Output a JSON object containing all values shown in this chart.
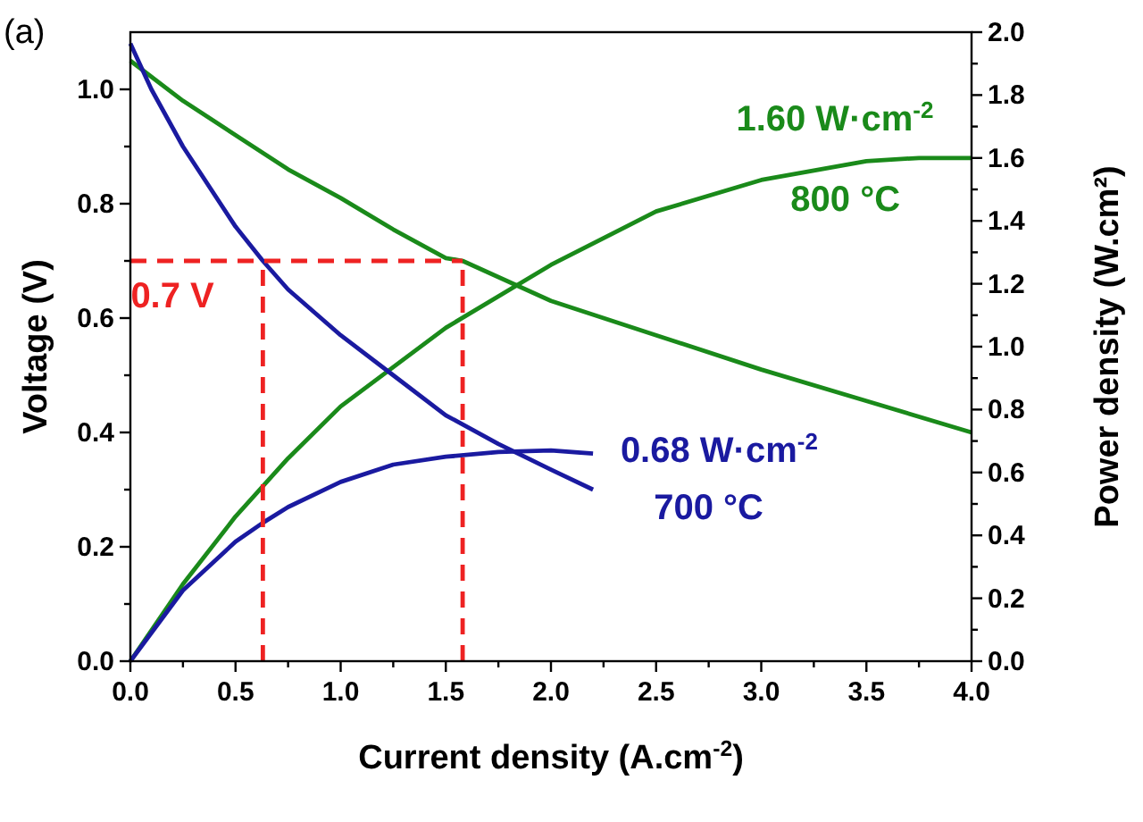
{
  "chart_data": {
    "type": "line",
    "title": "(a)",
    "xlabel": "Current density (A.cm$^{-2}$)",
    "ylabel": "Voltage (V)",
    "y2label": "Power density (W.cm²)",
    "xlim": [
      0,
      4
    ],
    "ylim": [
      0,
      1.1
    ],
    "y2lim": [
      0,
      2
    ],
    "xticks": [
      {
        "value": 0,
        "label": "0.0"
      },
      {
        "value": 0.25,
        "label": null
      },
      0.5,
      {
        "value": 0.75,
        "label": null
      },
      {
        "value": 1,
        "label": "1.0"
      },
      {
        "value": 1.25,
        "label": null
      },
      1.5,
      {
        "value": 1.75,
        "label": null
      },
      {
        "value": 2,
        "label": "2.0"
      },
      {
        "value": 2.25,
        "label": null
      },
      2.5,
      {
        "value": 2.75,
        "label": null
      },
      {
        "value": 3,
        "label": "3.0"
      },
      {
        "value": 3.25,
        "label": null
      },
      3.5,
      {
        "value": 3.75,
        "label": null
      },
      {
        "value": 4,
        "label": "4.0"
      }
    ],
    "yticks": [
      {
        "value": 0,
        "label": "0.0"
      },
      {
        "value": 0.1,
        "label": null
      },
      0.2,
      {
        "value": 0.3,
        "label": null
      },
      0.4,
      {
        "value": 0.5,
        "label": null
      },
      0.6,
      {
        "value": 0.7,
        "label": null
      },
      0.8,
      {
        "value": 0.9,
        "label": null
      },
      {
        "value": 1,
        "label": "1.0"
      }
    ],
    "y2ticks": [
      {
        "value": 0,
        "label": "0.0"
      },
      {
        "value": 0.1,
        "label": null
      },
      0.2,
      {
        "value": 0.3,
        "label": null
      },
      0.4,
      {
        "value": 0.5,
        "label": null
      },
      0.6,
      {
        "value": 0.7,
        "label": null
      },
      0.8,
      {
        "value": 0.9,
        "label": null
      },
      {
        "value": 1,
        "label": "1.0"
      },
      {
        "value": 1.1,
        "label": null
      },
      1.2,
      {
        "value": 1.3,
        "label": null
      },
      1.4,
      {
        "value": 1.5,
        "label": null
      },
      1.6,
      {
        "value": 1.7,
        "label": null
      },
      1.8,
      {
        "value": 1.9,
        "label": null
      },
      {
        "value": 2,
        "label": "2.0"
      }
    ],
    "grid": false,
    "marker": "none",
    "series": [
      {
        "color": "#1a8a1a",
        "x": [
          0,
          0.25,
          0.5,
          0.75,
          1.0,
          1.25,
          1.5,
          1.58,
          2.0,
          2.5,
          3.0,
          3.5,
          4.0
        ],
        "values": [
          1.05,
          0.98,
          0.92,
          0.86,
          0.81,
          0.755,
          0.705,
          0.7,
          0.63,
          0.57,
          0.51,
          0.455,
          0.4
        ]
      },
      {
        "color": "#1a8a1a",
        "axis": "y2",
        "x": [
          0,
          0.25,
          0.5,
          0.75,
          1.0,
          1.5,
          2.0,
          2.5,
          3.0,
          3.5,
          3.75,
          4.0
        ],
        "values": [
          0,
          0.245,
          0.46,
          0.645,
          0.81,
          1.06,
          1.26,
          1.43,
          1.53,
          1.59,
          1.6,
          1.6
        ]
      },
      {
        "color": "#1a1aa0",
        "x": [
          0,
          0.1,
          0.25,
          0.5,
          0.63,
          0.75,
          1.0,
          1.25,
          1.5,
          1.75,
          2.0,
          2.2
        ],
        "values": [
          1.08,
          1.0,
          0.9,
          0.76,
          0.7,
          0.65,
          0.57,
          0.5,
          0.43,
          0.38,
          0.335,
          0.3
        ]
      },
      {
        "color": "#1a1aa0",
        "axis": "y2",
        "x": [
          0,
          0.25,
          0.5,
          0.63,
          0.75,
          1.0,
          1.25,
          1.5,
          1.75,
          2.0,
          2.2
        ],
        "values": [
          0,
          0.225,
          0.38,
          0.44,
          0.49,
          0.57,
          0.625,
          0.65,
          0.665,
          0.67,
          0.66
        ]
      },
      {
        "color": "#ee2222",
        "line_style": "dashed",
        "x": [
          0,
          1.58
        ],
        "values": [
          0.7,
          0.7
        ]
      },
      {
        "color": "#ee2222",
        "line_style": "dashed",
        "x": [
          0.63,
          0.63
        ],
        "values": [
          0,
          0.7
        ]
      },
      {
        "color": "#ee2222",
        "line_style": "dashed",
        "x": [
          1.58,
          1.58
        ],
        "values": [
          0,
          0.7
        ]
      }
    ],
    "annotations": [
      "0.7 V",
      "1.60 W·cm$^{-2}$",
      "800 °C",
      "0.68 W·cm$^{-2}$",
      "700 °C"
    ]
  }
}
